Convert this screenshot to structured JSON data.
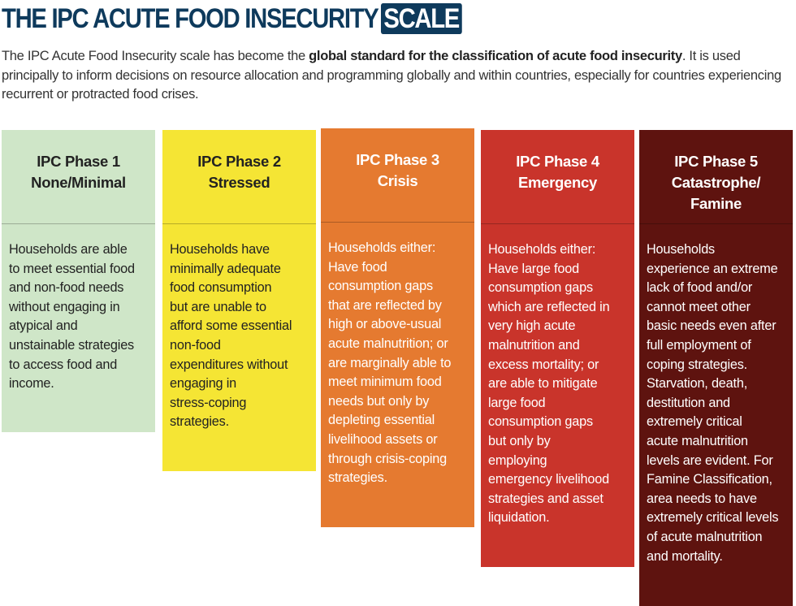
{
  "title": {
    "main": "THE IPC ACUTE FOOD INSECURITY",
    "highlight": "SCALE"
  },
  "intro": {
    "before": "The IPC Acute Food Insecurity scale has become the ",
    "bold": "global standard for the classification of acute food insecurity",
    "after": ". It is used principally to inform decisions on resource allocation and programming globally and within countries, especially for countries experiencing recurrent or protracted food crises."
  },
  "colors": {
    "title": "#0e3a5c",
    "phase1": "#cfe6c8",
    "phase2": "#f5e534",
    "phase3": "#e57a30",
    "phase4": "#c9342b",
    "phase5": "#5e130f"
  },
  "phases": [
    {
      "heading": [
        "IPC Phase 1",
        "None/Minimal"
      ],
      "lines": [
        "Households are able",
        "to meet essential food",
        "and non-food needs",
        "without engaging in",
        "atypical and",
        "unstainable strategies",
        "to access food and",
        "income."
      ]
    },
    {
      "heading": [
        "IPC Phase 2",
        "Stressed"
      ],
      "lines": [
        "Households have",
        "minimally adequate",
        "food consumption",
        "but are unable to",
        "afford some essential",
        "non-food",
        "expenditures without",
        "engaging in",
        "stress-coping",
        "strategies."
      ]
    },
    {
      "heading": [
        "IPC Phase 3",
        "Crisis"
      ],
      "lines": [
        "Households either:",
        "Have food",
        "consumption gaps",
        "that are reflected by",
        "high or above-usual",
        "acute malnutrition; or",
        "are marginally able to",
        "meet minimum food",
        "needs but only by",
        "depleting essential",
        "livelihood assets or",
        "through crisis-coping",
        "strategies."
      ]
    },
    {
      "heading": [
        "IPC Phase 4",
        "Emergency"
      ],
      "lines": [
        "Households either:",
        "Have large food",
        "consumption gaps",
        "which are reflected in",
        "very high acute",
        "malnutrition and",
        "excess mortality; or",
        "are able to mitigate",
        "large food",
        "consumption gaps",
        "but only by",
        "employing",
        "emergency livelihood",
        "strategies and asset",
        "liquidation."
      ]
    },
    {
      "heading": [
        "IPC Phase 5",
        "Catastrophe/",
        "Famine"
      ],
      "lines": [
        "Households",
        "experience an extreme",
        "lack of food and/or",
        "cannot meet other",
        "basic needs even after",
        "full employment of",
        "coping strategies.",
        "Starvation, death,",
        "destitution and",
        "extremely critical",
        "acute malnutrition",
        "levels are evident. For",
        "Famine Classification,",
        "area needs to have",
        "extremely critical levels",
        "of acute malnutrition",
        "and mortality."
      ]
    }
  ]
}
